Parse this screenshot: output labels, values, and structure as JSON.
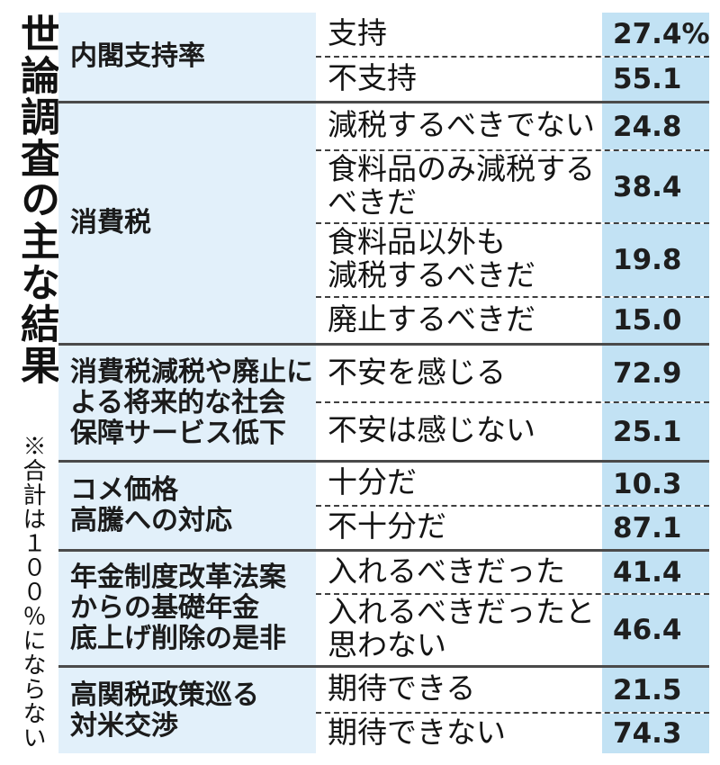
{
  "title": "世論調査の主な結果",
  "note": "※合計は１００％にならない",
  "colors": {
    "category_bg": "#e2f0fa",
    "value_bg": "#c2e2f4",
    "separator": "#4a4a4a",
    "text": "#111111"
  },
  "chart_data": {
    "type": "table",
    "title": "世論調査の主な結果",
    "note": "※合計は１００％にならない",
    "value_unit": "%",
    "groups": [
      {
        "category": "内閣支持率",
        "rows": [
          {
            "label": "支持",
            "value": "27.4%",
            "number": 27.4
          },
          {
            "label": "不支持",
            "value": "55.1",
            "number": 55.1
          }
        ]
      },
      {
        "category": "消費税",
        "rows": [
          {
            "label": "減税するべきでない",
            "value": "24.8",
            "number": 24.8
          },
          {
            "label": "食料品のみ減税する\nべきだ",
            "value": "38.4",
            "number": 38.4
          },
          {
            "label": "食料品以外も\n減税するべきだ",
            "value": "19.8",
            "number": 19.8
          },
          {
            "label": "廃止するべきだ",
            "value": "15.0",
            "number": 15.0
          }
        ]
      },
      {
        "category": "消費税減税や廃止に\nよる将来的な社会\n保障サービス低下",
        "rows": [
          {
            "label": "不安を感じる",
            "value": "72.9",
            "number": 72.9
          },
          {
            "label": "不安は感じない",
            "value": "25.1",
            "number": 25.1
          }
        ]
      },
      {
        "category": "コメ価格\n高騰への対応",
        "rows": [
          {
            "label": "十分だ",
            "value": "10.3",
            "number": 10.3
          },
          {
            "label": "不十分だ",
            "value": "87.1",
            "number": 87.1
          }
        ]
      },
      {
        "category": "年金制度改革法案\nからの基礎年金\n底上げ削除の是非",
        "rows": [
          {
            "label": "入れるべきだった",
            "value": "41.4",
            "number": 41.4
          },
          {
            "label": "入れるべきだったと\n思わない",
            "value": "46.4",
            "number": 46.4
          }
        ]
      },
      {
        "category": "高関税政策巡る\n対米交渉",
        "rows": [
          {
            "label": "期待できる",
            "value": "21.5",
            "number": 21.5
          },
          {
            "label": "期待できない",
            "value": "74.3",
            "number": 74.3
          }
        ]
      }
    ]
  }
}
